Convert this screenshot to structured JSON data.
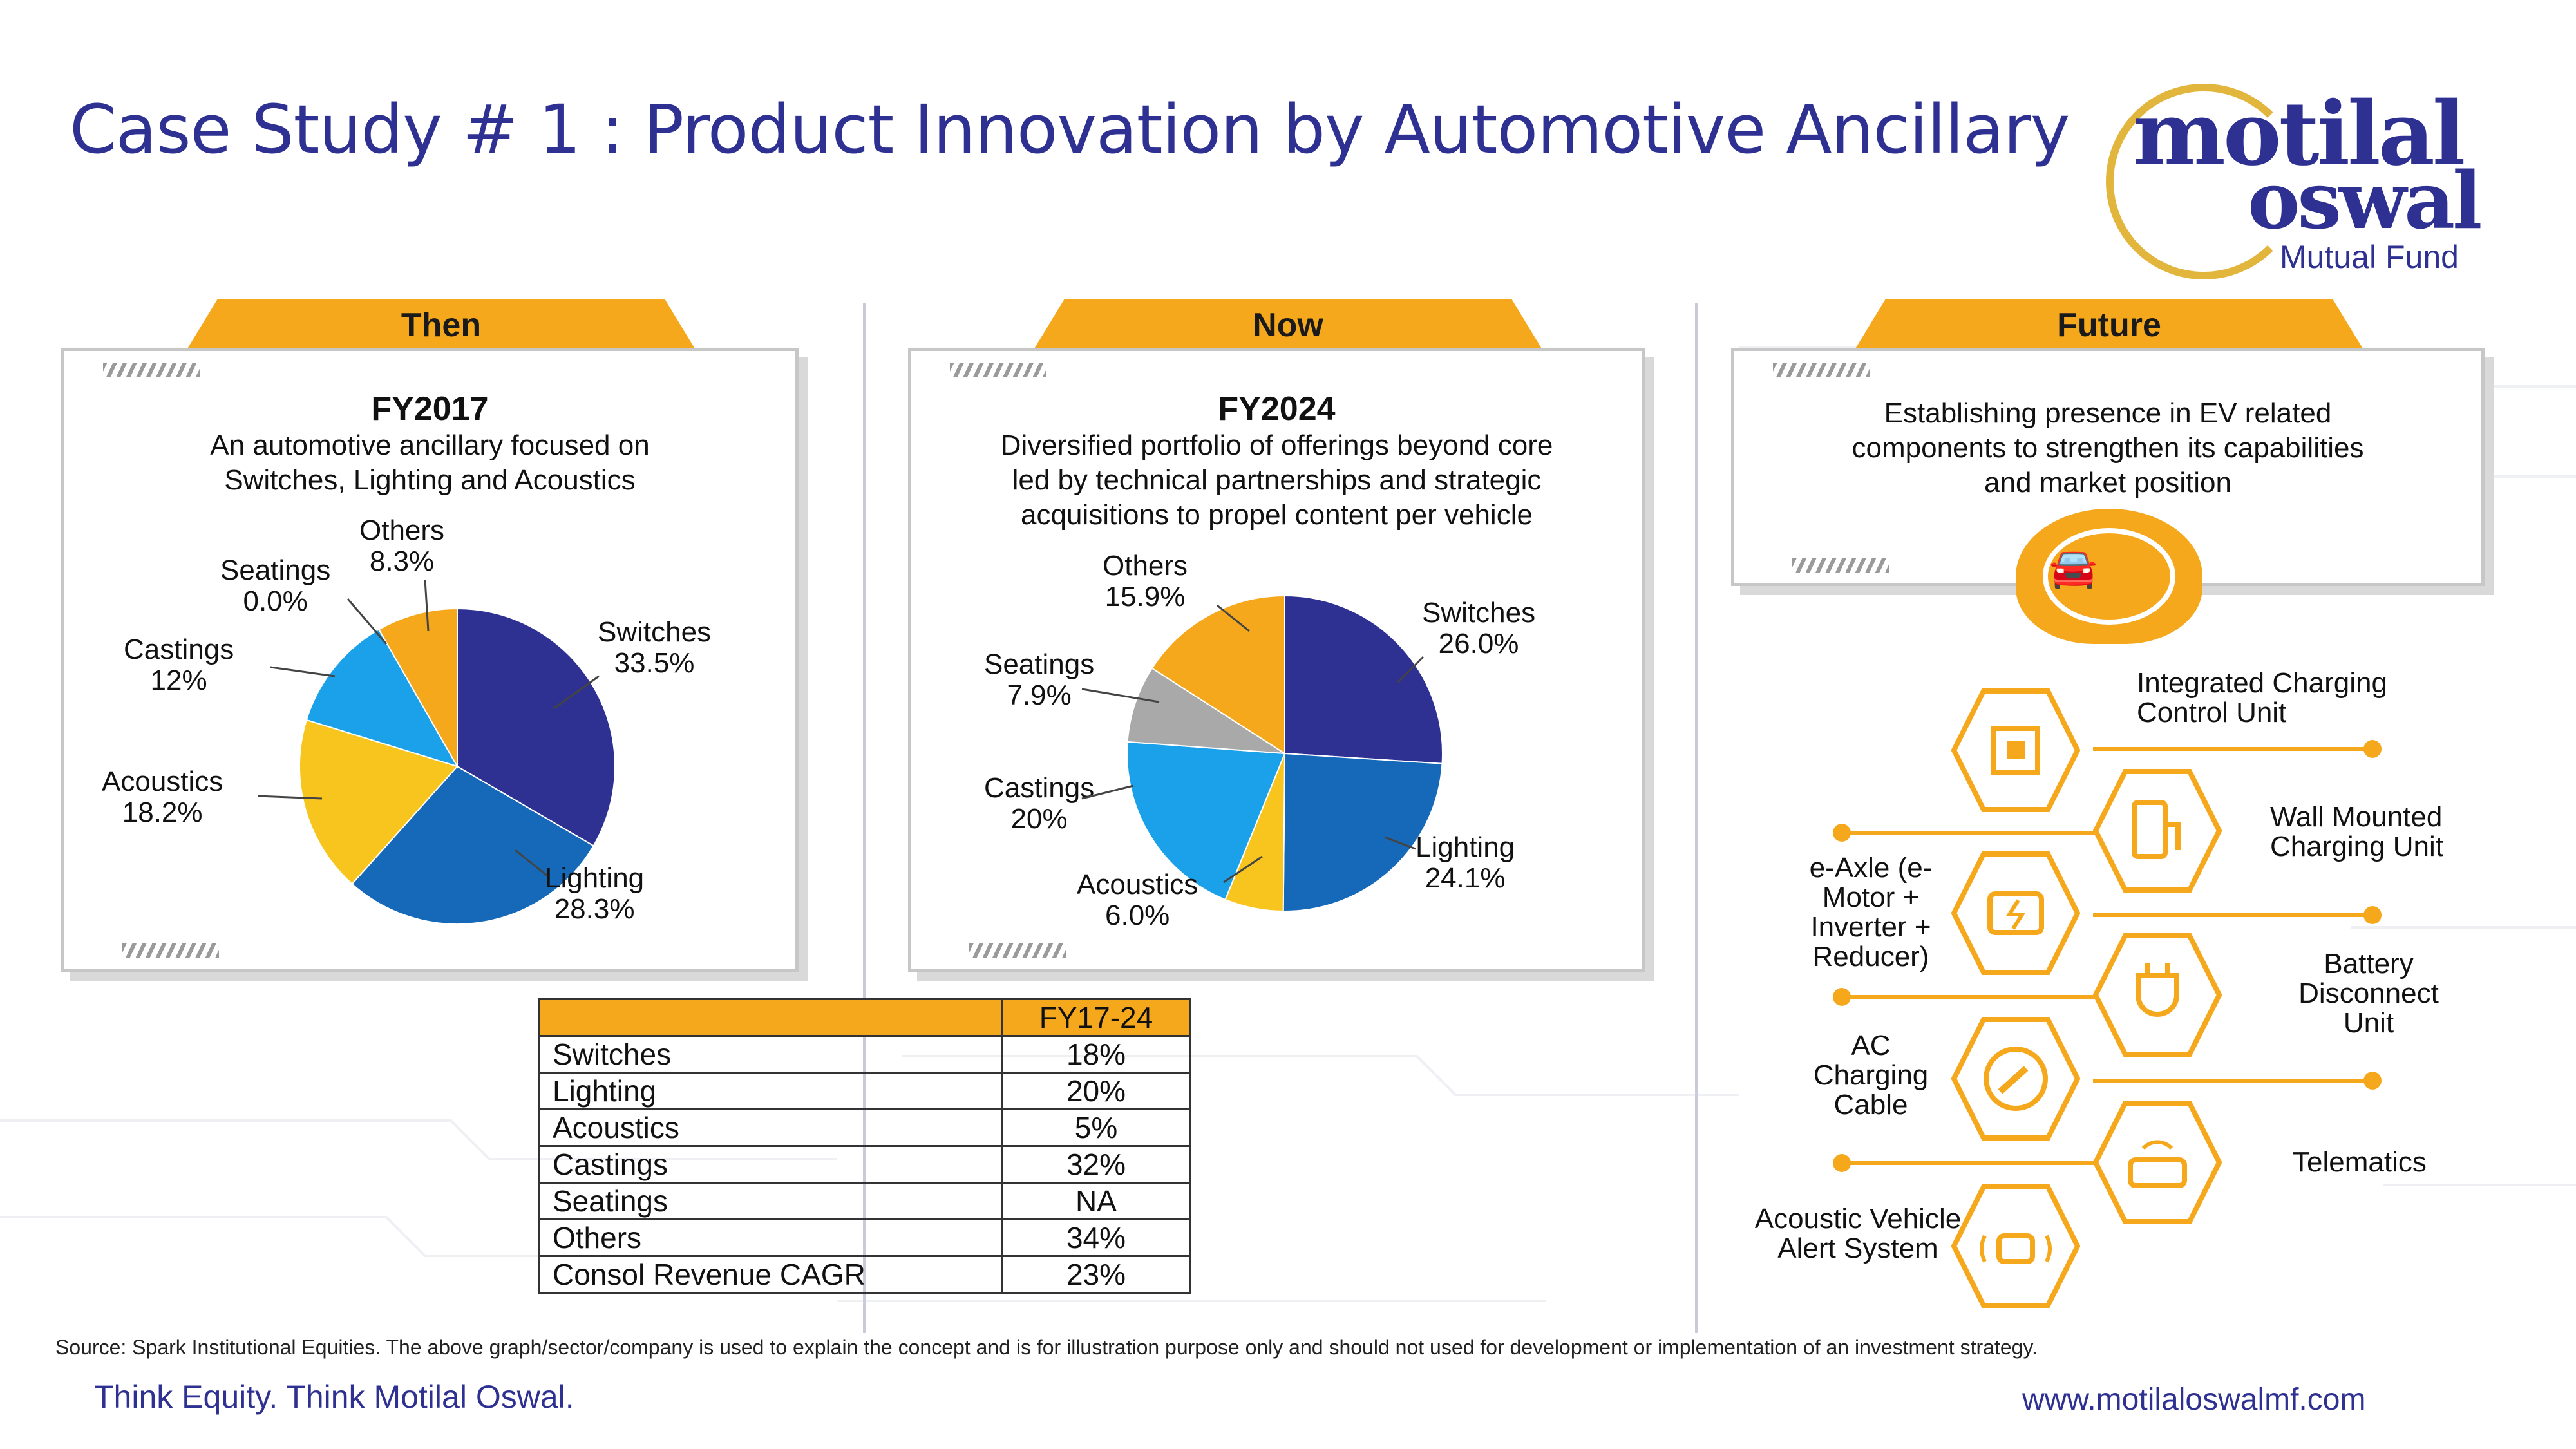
{
  "title": "Case Study # 1 : Product Innovation by Automotive Ancillary",
  "logo": {
    "word1": "motilal",
    "word2": "oswal",
    "sub": "Mutual Fund"
  },
  "colors": {
    "accent": "#f6a81d",
    "navy": "#2e3192",
    "blue": "#1569b8",
    "yellow": "#f7c51e",
    "sky": "#1ba1ea",
    "gray": "#a9a9a9"
  },
  "then": {
    "tab": "Then",
    "fy": "FY2017",
    "desc": [
      "An automotive ancillary focused on",
      "Switches, Lighting and Acoustics"
    ]
  },
  "now": {
    "tab": "Now",
    "fy": "FY2024",
    "desc": [
      "Diversified portfolio of offerings beyond core",
      "led by technical partnerships and strategic",
      "acquisitions to propel content per vehicle"
    ]
  },
  "future": {
    "tab": "Future",
    "desc": [
      "Establishing presence in EV related",
      "components to strengthen its capabilities",
      "and market position"
    ],
    "icon": "ev-car-icon",
    "components": [
      {
        "label": "Integrated Charging Control Unit",
        "icon": "chip-icon"
      },
      {
        "label": "Wall Mounted Charging Unit",
        "icon": "charger-icon"
      },
      {
        "label": "e-Axle (e-Motor + Inverter + Reducer)",
        "icon": "motor-icon"
      },
      {
        "label": "Battery Disconnect Unit",
        "icon": "plug-icon"
      },
      {
        "label": "AC Charging Cable",
        "icon": "cable-icon"
      },
      {
        "label": "Telematics",
        "icon": "telematics-icon"
      },
      {
        "label": "Acoustic Vehicle Alert System",
        "icon": "alert-icon"
      }
    ]
  },
  "chart_data": [
    {
      "type": "pie",
      "title": "FY2017",
      "categories": [
        "Switches",
        "Lighting",
        "Acoustics",
        "Castings",
        "Seatings",
        "Others"
      ],
      "values": [
        33.5,
        28.3,
        18.2,
        12,
        0.0,
        8.3
      ],
      "labels": [
        "33.5%",
        "28.3%",
        "18.2%",
        "12%",
        "0.0%",
        "8.3%"
      ]
    },
    {
      "type": "pie",
      "title": "FY2024",
      "categories": [
        "Switches",
        "Lighting",
        "Acoustics",
        "Castings",
        "Seatings",
        "Others"
      ],
      "values": [
        26.0,
        24.1,
        6.0,
        20,
        7.9,
        15.9
      ],
      "labels": [
        "26.0%",
        "24.1%",
        "6.0%",
        "20%",
        "7.9%",
        "15.9%"
      ]
    },
    {
      "type": "table",
      "header": [
        "",
        "FY17-24"
      ],
      "rows": [
        [
          "Switches",
          "18%"
        ],
        [
          "Lighting",
          "20%"
        ],
        [
          "Acoustics",
          "5%"
        ],
        [
          "Castings",
          "32%"
        ],
        [
          "Seatings",
          "NA"
        ],
        [
          "Others",
          "34%"
        ],
        [
          "Consol Revenue CAGR",
          "23%"
        ]
      ]
    }
  ],
  "source": "Source: Spark Institutional Equities. The above graph/sector/company is used to explain the concept and is for illustration purpose only and should not used for development or implementation of an investment strategy.",
  "footer": {
    "tagline": "Think Equity. Think Motilal Oswal.",
    "url": "www.motilaloswalmf.com"
  }
}
